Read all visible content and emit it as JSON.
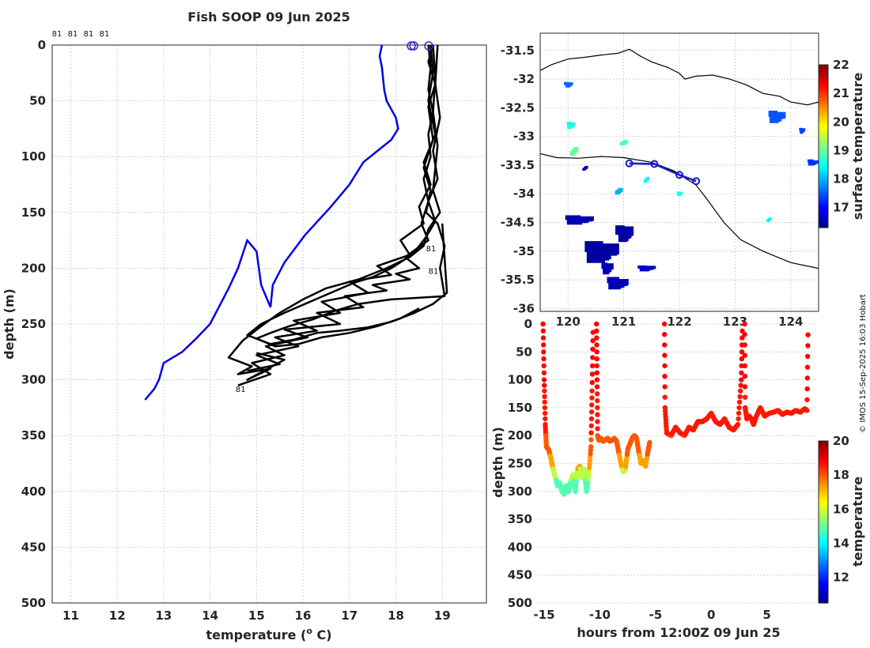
{
  "title": "Fish SOOP 09 Jun 2025",
  "credit": "© IMOS 15-Sep-2025 16:03 Hobart",
  "colors": {
    "profile": "#000000",
    "mean_profile": "#0000e6",
    "track": "#1a1acc",
    "coast": "#000000"
  },
  "chart_data": [
    {
      "id": "profile",
      "type": "line",
      "xlabel": "temperature (",
      "xlabel_sup": "o",
      "xlabel_end": " C)",
      "ylabel": "depth (m)",
      "xlim": [
        10.6,
        19.95
      ],
      "ylim": [
        0,
        500
      ],
      "xticks": [
        11,
        12,
        13,
        14,
        15,
        16,
        17,
        18,
        19
      ],
      "yticks": [
        0,
        50,
        100,
        150,
        200,
        250,
        300,
        350,
        400,
        450,
        500
      ],
      "top_labels": [
        "81",
        "81",
        "81",
        "81"
      ],
      "mean_profile": {
        "name": "climatology",
        "x": [
          17.7,
          17.65,
          17.7,
          17.75,
          17.8,
          18.0,
          18.05,
          17.9,
          17.6,
          17.3,
          17.0,
          16.6,
          16.05,
          15.6,
          15.35,
          15.3,
          15.1,
          15.0,
          14.8,
          14.6,
          14.4,
          14.0,
          13.7,
          13.4,
          13.0,
          12.9,
          12.8,
          12.6
        ],
        "y": [
          0,
          10,
          20,
          40,
          50,
          65,
          75,
          85,
          95,
          105,
          125,
          145,
          170,
          195,
          215,
          235,
          215,
          185,
          175,
          200,
          218,
          250,
          263,
          275,
          285,
          300,
          308,
          318
        ]
      },
      "casts": [
        {
          "x": [
            18.7,
            18.75,
            18.7,
            18.8,
            18.7,
            18.75,
            18.6,
            18.7,
            18.55,
            18.7,
            18.2,
            18.5,
            18.0,
            18.3,
            17.5,
            17.8,
            16.9,
            17.3,
            16.3,
            16.8,
            15.6,
            16.1,
            15.2,
            15.6,
            14.9,
            15.3,
            14.6
          ],
          "y": [
            0,
            20,
            40,
            60,
            80,
            100,
            120,
            140,
            160,
            175,
            190,
            200,
            205,
            210,
            215,
            220,
            225,
            235,
            240,
            250,
            255,
            262,
            270,
            278,
            285,
            295,
            305
          ]
        },
        {
          "x": [
            18.8,
            18.85,
            18.8,
            18.9,
            18.85,
            18.8,
            18.95,
            18.7,
            18.6,
            18.3,
            17.8,
            17.2,
            16.5,
            16.0,
            15.5,
            15.1,
            14.7,
            14.4,
            14.9,
            14.6,
            15.3,
            14.8,
            15.6,
            15.0
          ],
          "y": [
            0,
            30,
            60,
            90,
            110,
            130,
            150,
            165,
            180,
            190,
            200,
            210,
            218,
            228,
            240,
            252,
            265,
            280,
            288,
            295,
            290,
            300,
            282,
            276
          ]
        },
        {
          "x": [
            18.75,
            18.8,
            18.7,
            18.85,
            18.6,
            18.75,
            18.5,
            18.6,
            18.1,
            18.3,
            17.6,
            17.9,
            17.0,
            17.4,
            16.4,
            16.8,
            15.8,
            16.3,
            15.4,
            15.9,
            15.0,
            15.5,
            14.8
          ],
          "y": [
            0,
            25,
            50,
            80,
            105,
            125,
            145,
            160,
            175,
            188,
            198,
            206,
            212,
            222,
            230,
            240,
            247,
            256,
            262,
            270,
            278,
            286,
            292
          ]
        },
        {
          "x": [
            18.8,
            18.7,
            18.85,
            18.7,
            18.8,
            18.6,
            18.75,
            18.65,
            18.9,
            19.05,
            18.95,
            19.05,
            17.9,
            17.2,
            16.7,
            16.2,
            15.7,
            15.3,
            15.0,
            15.4,
            15.9,
            16.4,
            17.0,
            17.6,
            18.1,
            18.5
          ],
          "y": [
            0,
            15,
            35,
            55,
            85,
            110,
            130,
            150,
            160,
            180,
            200,
            225,
            228,
            232,
            238,
            246,
            252,
            258,
            263,
            270,
            268,
            262,
            258,
            252,
            245,
            236
          ]
        },
        {
          "x": [
            18.9,
            18.85,
            18.95,
            18.8,
            18.9,
            18.7,
            18.85,
            18.65,
            18.45,
            18.2,
            17.9,
            17.5,
            17.1,
            16.6,
            16.1,
            15.6,
            15.1,
            14.8,
            15.3,
            15.8,
            16.3,
            16.8,
            17.4,
            17.9,
            18.4,
            18.8,
            19.1,
            19.0
          ],
          "y": [
            0,
            35,
            65,
            95,
            120,
            140,
            158,
            172,
            183,
            192,
            200,
            208,
            213,
            222,
            231,
            240,
            250,
            260,
            268,
            264,
            258,
            256,
            253,
            248,
            240,
            232,
            222,
            160
          ]
        }
      ],
      "cast_labels": [
        {
          "text": "81",
          "x": 14.55,
          "y": 311
        },
        {
          "text": "81",
          "x": 18.65,
          "y": 185
        },
        {
          "text": "81",
          "x": 18.7,
          "y": 205
        }
      ]
    },
    {
      "id": "map",
      "type": "heatmap",
      "xlim": [
        119.5,
        124.5
      ],
      "ylim": [
        -36.05,
        -31.2
      ],
      "xticks": [
        120,
        121,
        122,
        123,
        124
      ],
      "yticks": [
        -31.5,
        -32,
        -32.5,
        -33,
        -33.5,
        -34,
        -34.5,
        -35,
        -35.5,
        -36
      ],
      "colorbar_label": "surface temperature",
      "colorbar_ticks": [
        17,
        18,
        19,
        20,
        21,
        22
      ],
      "colorbar_range": [
        16.3,
        22
      ],
      "track_points": [
        {
          "lon": 121.1,
          "lat": -33.47
        },
        {
          "lon": 121.55,
          "lat": -33.48
        },
        {
          "lon": 122.0,
          "lat": -33.67
        },
        {
          "lon": 122.3,
          "lat": -33.78
        }
      ],
      "coast_outline": [
        [
          119.5,
          -31.85
        ],
        [
          119.7,
          -31.75
        ],
        [
          120.0,
          -31.65
        ],
        [
          120.3,
          -31.62
        ],
        [
          120.6,
          -31.58
        ],
        [
          120.9,
          -31.55
        ],
        [
          121.1,
          -31.48
        ],
        [
          121.3,
          -31.6
        ],
        [
          121.5,
          -31.7
        ],
        [
          121.8,
          -31.8
        ],
        [
          122.0,
          -31.9
        ],
        [
          122.1,
          -32.0
        ],
        [
          122.3,
          -31.95
        ],
        [
          122.6,
          -31.93
        ],
        [
          122.9,
          -32.0
        ],
        [
          123.2,
          -32.1
        ],
        [
          123.5,
          -32.25
        ],
        [
          123.8,
          -32.3
        ],
        [
          124.0,
          -32.4
        ],
        [
          124.3,
          -32.45
        ],
        [
          124.5,
          -32.4
        ]
      ],
      "coast_south": [
        [
          119.5,
          -33.3
        ],
        [
          119.8,
          -33.37
        ],
        [
          120.2,
          -33.38
        ],
        [
          120.6,
          -33.35
        ],
        [
          121.0,
          -33.37
        ],
        [
          121.5,
          -33.45
        ],
        [
          121.9,
          -33.6
        ],
        [
          122.3,
          -33.85
        ],
        [
          122.5,
          -34.1
        ],
        [
          122.8,
          -34.5
        ],
        [
          123.1,
          -34.8
        ],
        [
          123.5,
          -35.0
        ],
        [
          124.0,
          -35.2
        ],
        [
          124.5,
          -35.3
        ]
      ],
      "sst_patches": [
        {
          "lon": 120.2,
          "lat": -34.45,
          "w": 0.5,
          "h": 0.15,
          "t": 16.6
        },
        {
          "lon": 120.6,
          "lat": -35.0,
          "w": 0.6,
          "h": 0.35,
          "t": 16.5
        },
        {
          "lon": 120.9,
          "lat": -35.55,
          "w": 0.4,
          "h": 0.2,
          "t": 16.6
        },
        {
          "lon": 121.0,
          "lat": -34.7,
          "w": 0.3,
          "h": 0.3,
          "t": 16.5
        },
        {
          "lon": 121.4,
          "lat": -35.3,
          "w": 0.3,
          "h": 0.1,
          "t": 16.7
        },
        {
          "lon": 120.7,
          "lat": -35.3,
          "w": 0.2,
          "h": 0.2,
          "t": 16.6
        },
        {
          "lon": 120.9,
          "lat": -33.95,
          "w": 0.15,
          "h": 0.12,
          "t": 18.0
        },
        {
          "lon": 121.4,
          "lat": -33.75,
          "w": 0.1,
          "h": 0.1,
          "t": 18.4
        },
        {
          "lon": 120.1,
          "lat": -33.25,
          "w": 0.15,
          "h": 0.15,
          "t": 19.0
        },
        {
          "lon": 121.0,
          "lat": -33.1,
          "w": 0.15,
          "h": 0.1,
          "t": 18.8
        },
        {
          "lon": 120.05,
          "lat": -32.8,
          "w": 0.15,
          "h": 0.12,
          "t": 18.6
        },
        {
          "lon": 123.75,
          "lat": -32.65,
          "w": 0.3,
          "h": 0.2,
          "t": 17.5
        },
        {
          "lon": 124.4,
          "lat": -33.45,
          "w": 0.2,
          "h": 0.1,
          "t": 17.3
        },
        {
          "lon": 120.0,
          "lat": -32.1,
          "w": 0.15,
          "h": 0.1,
          "t": 17.6
        },
        {
          "lon": 124.2,
          "lat": -32.9,
          "w": 0.1,
          "h": 0.1,
          "t": 17.4
        },
        {
          "lon": 122.0,
          "lat": -34.0,
          "w": 0.1,
          "h": 0.08,
          "t": 18.6
        },
        {
          "lon": 123.6,
          "lat": -34.45,
          "w": 0.1,
          "h": 0.08,
          "t": 18.4
        },
        {
          "lon": 120.3,
          "lat": -33.55,
          "w": 0.1,
          "h": 0.08,
          "t": 16.6
        }
      ]
    },
    {
      "id": "section",
      "type": "scatter",
      "xlabel": "hours from 12:00Z 09 Jun 25",
      "ylabel": "depth (m)",
      "xlim": [
        -15.5,
        9.5
      ],
      "ylim": [
        0,
        500
      ],
      "xticks": [
        -15,
        -10,
        -5,
        0,
        5
      ],
      "yticks": [
        0,
        50,
        100,
        150,
        200,
        250,
        300,
        350,
        400,
        450,
        500
      ],
      "colorbar_label": "temperature",
      "colorbar_ticks": [
        12,
        14,
        16,
        18,
        20
      ],
      "colorbar_range": [
        10.5,
        20
      ],
      "tows": [
        {
          "t": [
            -15.1,
            -15.0,
            -14.9,
            -14.8,
            -14.6,
            -14.4,
            -14.2,
            -14.0,
            -13.8,
            -13.6,
            -13.4,
            -13.2,
            -13.0,
            -12.8,
            -12.6,
            -12.4,
            -12.2,
            -12.0,
            -11.8,
            -11.6,
            -11.4,
            -11.2,
            -11.0,
            -10.8,
            -10.7,
            -10.6
          ],
          "d": [
            0,
            100,
            180,
            220,
            225,
            240,
            260,
            275,
            290,
            285,
            300,
            305,
            290,
            300,
            280,
            270,
            300,
            260,
            255,
            275,
            260,
            300,
            270,
            220,
            120,
            0
          ]
        },
        {
          "t": [
            -10.3,
            -10.25,
            -10.2,
            -10.1,
            -9.9,
            -9.7,
            -9.5,
            -9.3,
            -9.1,
            -8.9,
            -8.7,
            -8.5,
            -8.3,
            -8.1,
            -7.9,
            -7.7,
            -7.5,
            -7.3,
            -7.1,
            -6.9,
            -6.7,
            -6.5,
            -6.3,
            -6.1,
            -5.9,
            -5.7,
            -5.5
          ],
          "d": [
            0,
            100,
            200,
            208,
            205,
            210,
            208,
            205,
            210,
            208,
            205,
            210,
            230,
            250,
            265,
            260,
            225,
            215,
            205,
            200,
            205,
            230,
            250,
            245,
            255,
            230,
            210
          ]
        },
        {
          "t": [
            -4.2,
            -4.15,
            -4.0,
            -3.6,
            -3.2,
            -2.8,
            -2.4,
            -2.0,
            -1.6,
            -1.2,
            -0.8,
            -0.4,
            0.0,
            0.4,
            0.8,
            1.2,
            1.6,
            2.0,
            2.4,
            2.7,
            2.8
          ],
          "d": [
            0,
            150,
            195,
            200,
            185,
            195,
            200,
            185,
            190,
            175,
            175,
            170,
            160,
            175,
            180,
            170,
            185,
            190,
            180,
            100,
            0
          ]
        },
        {
          "t": [
            3.0,
            3.05,
            3.2,
            3.4,
            3.6,
            3.8,
            4.0,
            4.4,
            4.8,
            5.2,
            5.6,
            6.0,
            6.4,
            6.8,
            7.2,
            7.6,
            8.0,
            8.4,
            8.6,
            8.7
          ],
          "d": [
            0,
            150,
            170,
            165,
            170,
            180,
            168,
            150,
            165,
            160,
            158,
            155,
            162,
            158,
            160,
            155,
            158,
            152,
            155,
            0
          ]
        }
      ]
    }
  ]
}
